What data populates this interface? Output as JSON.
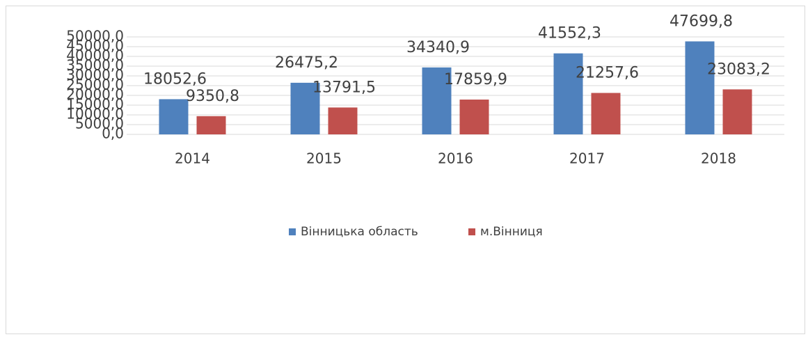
{
  "chart_data": {
    "type": "bar",
    "categories": [
      "2014",
      "2015",
      "2016",
      "2017",
      "2018"
    ],
    "series": [
      {
        "name": "Вінницька область",
        "color": "#4f81bd",
        "values": [
          18052.6,
          26475.2,
          34340.9,
          41552.3,
          47699.8
        ],
        "value_labels": [
          "18052,6",
          "26475,2",
          "34340,9",
          "41552,3",
          "47699,8"
        ]
      },
      {
        "name": "м.Вінниця",
        "color": "#c0504d",
        "values": [
          9350.8,
          13791.5,
          17859.9,
          21257.6,
          23083.2
        ],
        "value_labels": [
          "9350,8",
          "13791,5",
          "17859,9",
          "21257,6",
          "23083,2"
        ]
      }
    ],
    "ylim": [
      0,
      50000
    ],
    "yticks": [
      {
        "value": 0,
        "label": "0,0"
      },
      {
        "value": 5000,
        "label": "5000,0"
      },
      {
        "value": 10000,
        "label": "10000,0"
      },
      {
        "value": 15000,
        "label": "15000,0"
      },
      {
        "value": 20000,
        "label": "20000,0"
      },
      {
        "value": 25000,
        "label": "25000,0"
      },
      {
        "value": 30000,
        "label": "30000,0"
      },
      {
        "value": 35000,
        "label": "35000,0"
      },
      {
        "value": 40000,
        "label": "40000,0"
      },
      {
        "value": 45000,
        "label": "45000,0"
      },
      {
        "value": 50000,
        "label": "50000,0"
      }
    ],
    "grid": true,
    "legend": "bottom"
  }
}
